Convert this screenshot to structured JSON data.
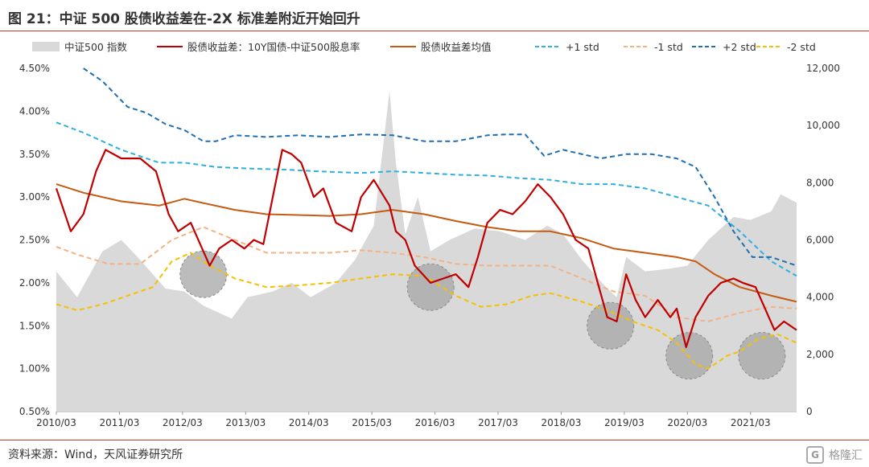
{
  "title": "图 21：中证 500 股债收益差在-2X 标准差附近开始回升",
  "source": "资料来源：Wind，天风证券研究所",
  "watermark": {
    "text": "格隆汇",
    "logo_glyph": "G"
  },
  "colors": {
    "area": "#d9d9d9",
    "spread": "#c00000",
    "mean": "#c55a11",
    "plus1": "#2eb0de",
    "minus1": "#f4b183",
    "plus2": "#1f6eb2",
    "minus2": "#f5c000",
    "circle": "#a6a6a6",
    "rule": "#c0392b"
  },
  "chart_data": {
    "type": "line",
    "x": [
      "2010/03",
      "2011/03",
      "2012/03",
      "2013/03",
      "2014/03",
      "2015/03",
      "2016/03",
      "2017/03",
      "2018/03",
      "2019/03",
      "2020/03",
      "2021/03"
    ],
    "x_range": [
      2010.17,
      2021.9
    ],
    "y_left": {
      "ylim": [
        0.5,
        4.5
      ],
      "ticks": [
        "0.50%",
        "1.00%",
        "1.50%",
        "2.00%",
        "2.50%",
        "3.00%",
        "3.50%",
        "4.00%",
        "4.50%"
      ],
      "tick_values": [
        0.5,
        1.0,
        1.5,
        2.0,
        2.5,
        3.0,
        3.5,
        4.0,
        4.5
      ]
    },
    "y_right": {
      "ylim": [
        0,
        12000
      ],
      "ticks": [
        "0",
        "2,000",
        "4,000",
        "6,000",
        "8,000",
        "10,000",
        "12,000"
      ],
      "tick_values": [
        0,
        2000,
        4000,
        6000,
        8000,
        10000,
        12000
      ]
    },
    "legend_position": "top",
    "series": [
      {
        "key": "csi500",
        "name": "中证500 指数",
        "axis": "right",
        "style": "area",
        "points": [
          [
            2010.17,
            4900
          ],
          [
            2010.5,
            4000
          ],
          [
            2010.9,
            5600
          ],
          [
            2011.2,
            6000
          ],
          [
            2011.5,
            5300
          ],
          [
            2011.9,
            4300
          ],
          [
            2012.2,
            4200
          ],
          [
            2012.5,
            3700
          ],
          [
            2012.95,
            3250
          ],
          [
            2013.2,
            4000
          ],
          [
            2013.6,
            4200
          ],
          [
            2013.9,
            4500
          ],
          [
            2014.2,
            4000
          ],
          [
            2014.6,
            4500
          ],
          [
            2014.9,
            5300
          ],
          [
            2015.2,
            6500
          ],
          [
            2015.45,
            11200
          ],
          [
            2015.55,
            8700
          ],
          [
            2015.7,
            6200
          ],
          [
            2015.9,
            7500
          ],
          [
            2016.1,
            5600
          ],
          [
            2016.4,
            6000
          ],
          [
            2016.8,
            6400
          ],
          [
            2017.2,
            6300
          ],
          [
            2017.6,
            6000
          ],
          [
            2017.95,
            6500
          ],
          [
            2018.2,
            6200
          ],
          [
            2018.5,
            5300
          ],
          [
            2018.9,
            4300
          ],
          [
            2019.05,
            4000
          ],
          [
            2019.2,
            5400
          ],
          [
            2019.5,
            4900
          ],
          [
            2019.9,
            5000
          ],
          [
            2020.17,
            5100
          ],
          [
            2020.5,
            6000
          ],
          [
            2020.9,
            6800
          ],
          [
            2021.17,
            6700
          ],
          [
            2021.5,
            7000
          ],
          [
            2021.65,
            7600
          ],
          [
            2021.9,
            7300
          ]
        ]
      },
      {
        "key": "spread",
        "name": "股债收益差：10Y国债-中证500股息率",
        "axis": "left",
        "style": "solid",
        "points": [
          [
            2010.17,
            3.1
          ],
          [
            2010.4,
            2.6
          ],
          [
            2010.6,
            2.8
          ],
          [
            2010.8,
            3.3
          ],
          [
            2010.95,
            3.55
          ],
          [
            2011.2,
            3.45
          ],
          [
            2011.5,
            3.45
          ],
          [
            2011.75,
            3.3
          ],
          [
            2011.95,
            2.8
          ],
          [
            2012.1,
            2.6
          ],
          [
            2012.3,
            2.7
          ],
          [
            2012.45,
            2.45
          ],
          [
            2012.6,
            2.2
          ],
          [
            2012.75,
            2.4
          ],
          [
            2012.95,
            2.5
          ],
          [
            2013.15,
            2.4
          ],
          [
            2013.3,
            2.5
          ],
          [
            2013.45,
            2.45
          ],
          [
            2013.6,
            3.0
          ],
          [
            2013.75,
            3.55
          ],
          [
            2013.9,
            3.5
          ],
          [
            2014.05,
            3.4
          ],
          [
            2014.25,
            3.0
          ],
          [
            2014.4,
            3.1
          ],
          [
            2014.6,
            2.7
          ],
          [
            2014.85,
            2.6
          ],
          [
            2015.0,
            3.0
          ],
          [
            2015.2,
            3.2
          ],
          [
            2015.45,
            2.9
          ],
          [
            2015.55,
            2.6
          ],
          [
            2015.7,
            2.5
          ],
          [
            2015.85,
            2.2
          ],
          [
            2016.1,
            2.0
          ],
          [
            2016.3,
            2.05
          ],
          [
            2016.5,
            2.1
          ],
          [
            2016.7,
            1.95
          ],
          [
            2016.85,
            2.3
          ],
          [
            2017.0,
            2.7
          ],
          [
            2017.2,
            2.85
          ],
          [
            2017.4,
            2.8
          ],
          [
            2017.6,
            2.95
          ],
          [
            2017.8,
            3.15
          ],
          [
            2018.0,
            3.0
          ],
          [
            2018.2,
            2.8
          ],
          [
            2018.4,
            2.5
          ],
          [
            2018.6,
            2.4
          ],
          [
            2018.75,
            2.0
          ],
          [
            2018.9,
            1.6
          ],
          [
            2019.05,
            1.55
          ],
          [
            2019.2,
            2.1
          ],
          [
            2019.35,
            1.8
          ],
          [
            2019.5,
            1.6
          ],
          [
            2019.7,
            1.8
          ],
          [
            2019.9,
            1.6
          ],
          [
            2020.0,
            1.7
          ],
          [
            2020.15,
            1.25
          ],
          [
            2020.3,
            1.6
          ],
          [
            2020.5,
            1.85
          ],
          [
            2020.7,
            2.0
          ],
          [
            2020.9,
            2.05
          ],
          [
            2021.05,
            2.0
          ],
          [
            2021.25,
            1.95
          ],
          [
            2021.4,
            1.7
          ],
          [
            2021.55,
            1.45
          ],
          [
            2021.7,
            1.55
          ],
          [
            2021.9,
            1.45
          ]
        ]
      },
      {
        "key": "mean",
        "name": "股债收益差均值",
        "axis": "left",
        "style": "solid",
        "points": [
          [
            2010.17,
            3.15
          ],
          [
            2010.6,
            3.05
          ],
          [
            2011.2,
            2.95
          ],
          [
            2011.8,
            2.9
          ],
          [
            2012.2,
            2.98
          ],
          [
            2012.5,
            2.93
          ],
          [
            2013.0,
            2.85
          ],
          [
            2013.5,
            2.8
          ],
          [
            2014.0,
            2.79
          ],
          [
            2014.5,
            2.78
          ],
          [
            2015.0,
            2.8
          ],
          [
            2015.5,
            2.85
          ],
          [
            2016.0,
            2.8
          ],
          [
            2016.5,
            2.72
          ],
          [
            2017.0,
            2.65
          ],
          [
            2017.5,
            2.6
          ],
          [
            2018.0,
            2.6
          ],
          [
            2018.5,
            2.52
          ],
          [
            2019.0,
            2.4
          ],
          [
            2019.5,
            2.35
          ],
          [
            2020.0,
            2.3
          ],
          [
            2020.3,
            2.25
          ],
          [
            2020.6,
            2.1
          ],
          [
            2021.0,
            1.95
          ],
          [
            2021.5,
            1.85
          ],
          [
            2021.9,
            1.78
          ]
        ]
      },
      {
        "key": "plus1",
        "name": "+1 std",
        "axis": "left",
        "style": "dash",
        "points": [
          [
            2010.17,
            3.87
          ],
          [
            2010.6,
            3.75
          ],
          [
            2011.2,
            3.55
          ],
          [
            2011.8,
            3.4
          ],
          [
            2012.2,
            3.4
          ],
          [
            2012.7,
            3.35
          ],
          [
            2013.3,
            3.33
          ],
          [
            2013.8,
            3.32
          ],
          [
            2014.3,
            3.3
          ],
          [
            2015.0,
            3.28
          ],
          [
            2015.5,
            3.3
          ],
          [
            2016.0,
            3.28
          ],
          [
            2016.5,
            3.26
          ],
          [
            2017.0,
            3.25
          ],
          [
            2017.5,
            3.22
          ],
          [
            2018.0,
            3.2
          ],
          [
            2018.5,
            3.15
          ],
          [
            2019.0,
            3.15
          ],
          [
            2019.5,
            3.1
          ],
          [
            2020.0,
            3.0
          ],
          [
            2020.5,
            2.9
          ],
          [
            2021.0,
            2.6
          ],
          [
            2021.5,
            2.25
          ],
          [
            2021.9,
            2.08
          ]
        ]
      },
      {
        "key": "minus1",
        "name": "-1 std",
        "axis": "left",
        "style": "dash",
        "points": [
          [
            2010.17,
            2.42
          ],
          [
            2010.5,
            2.33
          ],
          [
            2011.0,
            2.22
          ],
          [
            2011.5,
            2.22
          ],
          [
            2012.0,
            2.5
          ],
          [
            2012.5,
            2.65
          ],
          [
            2013.0,
            2.5
          ],
          [
            2013.5,
            2.35
          ],
          [
            2014.0,
            2.35
          ],
          [
            2014.5,
            2.35
          ],
          [
            2015.0,
            2.38
          ],
          [
            2015.5,
            2.35
          ],
          [
            2016.0,
            2.3
          ],
          [
            2016.5,
            2.22
          ],
          [
            2017.0,
            2.2
          ],
          [
            2017.5,
            2.2
          ],
          [
            2018.0,
            2.2
          ],
          [
            2018.5,
            2.05
          ],
          [
            2019.0,
            1.9
          ],
          [
            2019.5,
            1.85
          ],
          [
            2020.0,
            1.6
          ],
          [
            2020.5,
            1.55
          ],
          [
            2021.0,
            1.65
          ],
          [
            2021.5,
            1.72
          ],
          [
            2021.9,
            1.7
          ]
        ]
      },
      {
        "key": "plus2",
        "name": "+2 std",
        "axis": "left",
        "style": "dash",
        "points": [
          [
            2010.6,
            4.5
          ],
          [
            2010.9,
            4.35
          ],
          [
            2011.3,
            4.05
          ],
          [
            2011.6,
            3.98
          ],
          [
            2011.9,
            3.85
          ],
          [
            2012.2,
            3.78
          ],
          [
            2012.5,
            3.65
          ],
          [
            2012.7,
            3.65
          ],
          [
            2013.0,
            3.72
          ],
          [
            2013.5,
            3.7
          ],
          [
            2014.0,
            3.72
          ],
          [
            2014.5,
            3.7
          ],
          [
            2015.0,
            3.73
          ],
          [
            2015.5,
            3.72
          ],
          [
            2016.0,
            3.65
          ],
          [
            2016.5,
            3.65
          ],
          [
            2017.0,
            3.72
          ],
          [
            2017.3,
            3.73
          ],
          [
            2017.6,
            3.73
          ],
          [
            2017.9,
            3.48
          ],
          [
            2018.2,
            3.55
          ],
          [
            2018.5,
            3.5
          ],
          [
            2018.8,
            3.45
          ],
          [
            2019.2,
            3.5
          ],
          [
            2019.6,
            3.5
          ],
          [
            2020.0,
            3.45
          ],
          [
            2020.3,
            3.35
          ],
          [
            2020.6,
            3.0
          ],
          [
            2020.9,
            2.6
          ],
          [
            2021.2,
            2.3
          ],
          [
            2021.5,
            2.3
          ],
          [
            2021.9,
            2.2
          ]
        ]
      },
      {
        "key": "minus2",
        "name": "-2 std",
        "axis": "left",
        "style": "dash",
        "points": [
          [
            2010.17,
            1.75
          ],
          [
            2010.5,
            1.68
          ],
          [
            2010.9,
            1.75
          ],
          [
            2011.3,
            1.85
          ],
          [
            2011.7,
            1.95
          ],
          [
            2012.0,
            2.25
          ],
          [
            2012.3,
            2.35
          ],
          [
            2012.6,
            2.2
          ],
          [
            2013.0,
            2.05
          ],
          [
            2013.5,
            1.95
          ],
          [
            2014.0,
            1.97
          ],
          [
            2014.5,
            2.0
          ],
          [
            2015.0,
            2.05
          ],
          [
            2015.5,
            2.1
          ],
          [
            2016.0,
            2.08
          ],
          [
            2016.5,
            1.85
          ],
          [
            2016.9,
            1.72
          ],
          [
            2017.3,
            1.75
          ],
          [
            2017.7,
            1.85
          ],
          [
            2018.0,
            1.88
          ],
          [
            2018.5,
            1.78
          ],
          [
            2018.9,
            1.68
          ],
          [
            2019.3,
            1.55
          ],
          [
            2019.7,
            1.45
          ],
          [
            2020.0,
            1.3
          ],
          [
            2020.3,
            1.05
          ],
          [
            2020.5,
            1.0
          ],
          [
            2020.8,
            1.15
          ],
          [
            2021.0,
            1.2
          ],
          [
            2021.3,
            1.35
          ],
          [
            2021.6,
            1.4
          ],
          [
            2021.9,
            1.3
          ]
        ]
      }
    ],
    "highlights": [
      {
        "x": 2012.5,
        "y": 2.1
      },
      {
        "x": 2016.1,
        "y": 1.95
      },
      {
        "x": 2018.95,
        "y": 1.5
      },
      {
        "x": 2020.2,
        "y": 1.15
      },
      {
        "x": 2021.35,
        "y": 1.15
      }
    ]
  }
}
